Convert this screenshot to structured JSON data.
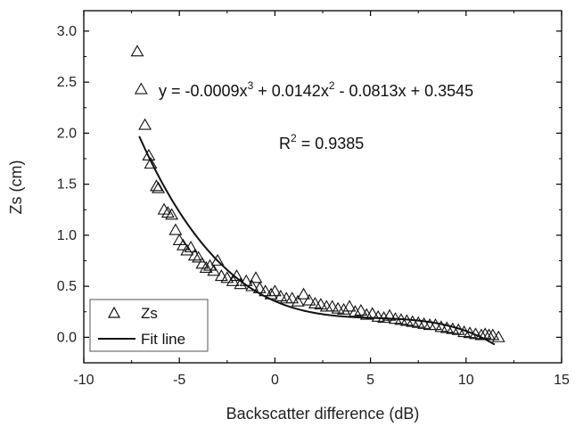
{
  "chart_data": {
    "type": "scatter",
    "xlabel": "Backscatter difference (dB)",
    "ylabel": "Zs (cm)",
    "xlim": [
      -10,
      15
    ],
    "ylim": [
      -0.25,
      3.2
    ],
    "xticks": [
      -10,
      -5,
      0,
      5,
      10,
      15
    ],
    "yticks": [
      0.0,
      0.5,
      1.0,
      1.5,
      2.0,
      2.5,
      3.0
    ],
    "xtick_labels": [
      "-10",
      "-5",
      "0",
      "5",
      "10",
      "15"
    ],
    "ytick_labels": [
      "0.0",
      "0.5",
      "1.0",
      "1.5",
      "2.0",
      "2.5",
      "3.0"
    ],
    "grid": false,
    "legend_position": "bottom-left",
    "annotations": {
      "equation": {
        "prefix": "y = -0.0009x",
        "exp1": "3",
        "mid1": " + 0.0142x",
        "exp2": "2",
        "rest": " - 0.0813x + 0.3545"
      },
      "r2": {
        "prefix": "R",
        "exp": "2",
        "rest": " = 0.9385"
      }
    },
    "fit_coefficients": [
      -0.0009,
      0.0142,
      -0.0813,
      0.3545
    ],
    "series": [
      {
        "name": "Zs",
        "marker": "open-triangle",
        "points": [
          [
            -7.2,
            2.8
          ],
          [
            -7.0,
            2.43
          ],
          [
            -6.8,
            2.08
          ],
          [
            -6.6,
            1.78
          ],
          [
            -6.5,
            1.7
          ],
          [
            -6.2,
            1.48
          ],
          [
            -6.1,
            1.46
          ],
          [
            -5.8,
            1.25
          ],
          [
            -5.6,
            1.22
          ],
          [
            -5.4,
            1.2
          ],
          [
            -5.2,
            1.05
          ],
          [
            -5.0,
            0.95
          ],
          [
            -4.8,
            0.9
          ],
          [
            -4.6,
            0.85
          ],
          [
            -4.4,
            0.88
          ],
          [
            -4.2,
            0.8
          ],
          [
            -4.0,
            0.78
          ],
          [
            -3.8,
            0.72
          ],
          [
            -3.6,
            0.68
          ],
          [
            -3.4,
            0.7
          ],
          [
            -3.2,
            0.65
          ],
          [
            -3.0,
            0.75
          ],
          [
            -2.8,
            0.6
          ],
          [
            -2.5,
            0.58
          ],
          [
            -2.2,
            0.55
          ],
          [
            -2.0,
            0.6
          ],
          [
            -1.8,
            0.52
          ],
          [
            -1.5,
            0.55
          ],
          [
            -1.2,
            0.5
          ],
          [
            -1.0,
            0.58
          ],
          [
            -0.8,
            0.48
          ],
          [
            -0.5,
            0.45
          ],
          [
            -0.2,
            0.42
          ],
          [
            0.0,
            0.45
          ],
          [
            0.3,
            0.4
          ],
          [
            0.6,
            0.38
          ],
          [
            0.9,
            0.38
          ],
          [
            1.2,
            0.35
          ],
          [
            1.5,
            0.42
          ],
          [
            1.8,
            0.36
          ],
          [
            2.1,
            0.33
          ],
          [
            2.4,
            0.32
          ],
          [
            2.7,
            0.3
          ],
          [
            3.0,
            0.3
          ],
          [
            3.3,
            0.28
          ],
          [
            3.6,
            0.27
          ],
          [
            3.9,
            0.3
          ],
          [
            4.2,
            0.25
          ],
          [
            4.5,
            0.26
          ],
          [
            4.8,
            0.22
          ],
          [
            5.1,
            0.23
          ],
          [
            5.4,
            0.2
          ],
          [
            5.7,
            0.19
          ],
          [
            6.0,
            0.21
          ],
          [
            6.3,
            0.18
          ],
          [
            6.6,
            0.17
          ],
          [
            6.9,
            0.16
          ],
          [
            7.2,
            0.15
          ],
          [
            7.5,
            0.14
          ],
          [
            7.8,
            0.13
          ],
          [
            8.1,
            0.12
          ],
          [
            8.4,
            0.12
          ],
          [
            8.7,
            0.1
          ],
          [
            9.0,
            0.09
          ],
          [
            9.3,
            0.08
          ],
          [
            9.6,
            0.07
          ],
          [
            9.9,
            0.05
          ],
          [
            10.2,
            0.04
          ],
          [
            10.5,
            0.03
          ],
          [
            10.8,
            0.02
          ],
          [
            11.0,
            0.03
          ],
          [
            11.2,
            0.02
          ],
          [
            11.4,
            0.02
          ],
          [
            11.7,
            0.0
          ]
        ]
      },
      {
        "name": "Fit line",
        "line": true,
        "x_range": [
          -7.1,
          11.5
        ]
      }
    ]
  }
}
